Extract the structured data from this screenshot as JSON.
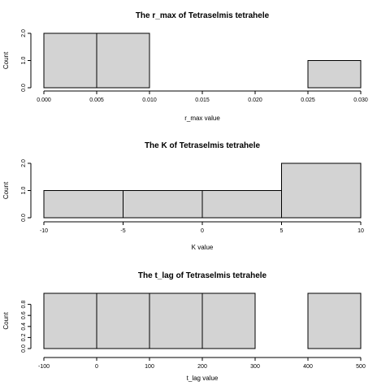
{
  "chart_data": [
    {
      "type": "bar",
      "title": "The r_max of Tetraselmis tetrahele",
      "xlabel": "r_max value",
      "ylabel": "Count",
      "breaks": [
        0.0,
        0.005,
        0.01,
        0.015,
        0.02,
        0.025,
        0.03
      ],
      "values": [
        2,
        2,
        0,
        0,
        0,
        1
      ],
      "xlim": [
        0.0,
        0.03
      ],
      "ylim": [
        0,
        2
      ],
      "x_ticks": [
        0.0,
        0.005,
        0.01,
        0.015,
        0.02,
        0.025,
        0.03
      ],
      "x_tick_labels": [
        "0.000",
        "0.005",
        "0.010",
        "0.015",
        "0.020",
        "0.025",
        "0.030"
      ],
      "y_ticks": [
        0,
        1,
        2
      ],
      "y_tick_labels": [
        "0.0",
        "1.0",
        "2.0"
      ]
    },
    {
      "type": "bar",
      "title": "The K of Tetraselmis tetrahele",
      "xlabel": "K value",
      "ylabel": "Count",
      "breaks": [
        -10,
        -5,
        0,
        5,
        10
      ],
      "values": [
        1,
        1,
        1,
        2
      ],
      "xlim": [
        -10,
        10
      ],
      "ylim": [
        0,
        2
      ],
      "x_ticks": [
        -10,
        -5,
        0,
        5,
        10
      ],
      "x_tick_labels": [
        "-10",
        "-5",
        "0",
        "5",
        "10"
      ],
      "y_ticks": [
        0,
        1,
        2
      ],
      "y_tick_labels": [
        "0.0",
        "1.0",
        "2.0"
      ]
    },
    {
      "type": "bar",
      "title": "The t_lag of Tetraselmis tetrahele",
      "xlabel": "t_lag value",
      "ylabel": "Count",
      "breaks": [
        -100,
        0,
        100,
        200,
        300,
        400,
        500
      ],
      "values": [
        1,
        1,
        1,
        1,
        0,
        1
      ],
      "xlim": [
        -100,
        500
      ],
      "ylim": [
        0,
        1
      ],
      "x_ticks": [
        -100,
        0,
        100,
        200,
        300,
        400,
        500
      ],
      "x_tick_labels": [
        "-100",
        "0",
        "100",
        "200",
        "300",
        "400",
        "500"
      ],
      "y_ticks": [
        0,
        0.2,
        0.4,
        0.6,
        0.8
      ],
      "y_tick_labels": [
        "0.0",
        "0.2",
        "0.4",
        "0.6",
        "0.8"
      ]
    }
  ]
}
